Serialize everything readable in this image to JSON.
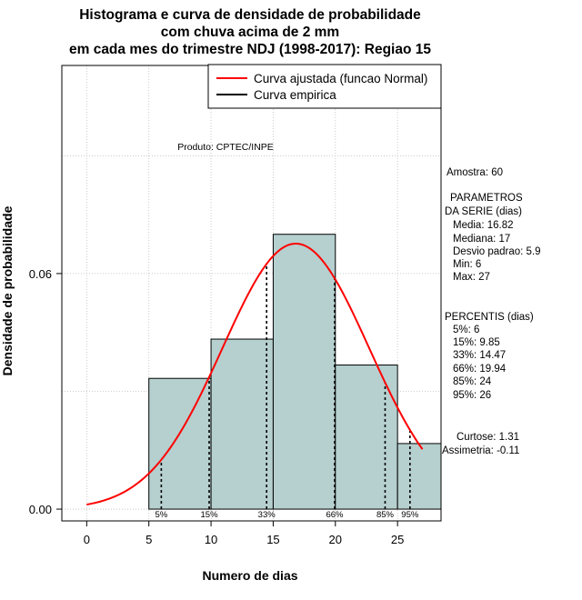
{
  "chart_data": {
    "type": "histogram",
    "title_lines": [
      "Histograma e curva de densidade de probabilidade",
      "com chuva acima de 2 mm",
      "em cada mes do trimestre NDJ (1998-2017): Regiao 15"
    ],
    "xlabel": "Numero de dias",
    "ylabel": "Densidade de probabilidade",
    "xlim": [
      -2,
      28.5
    ],
    "ylim": [
      -0.003,
      0.113
    ],
    "x_ticks": [
      0,
      5,
      10,
      15,
      20,
      25
    ],
    "y_ticks": [
      0.0,
      0.06
    ],
    "y_tick_labels": [
      "0.00",
      "0.06"
    ],
    "grid": true,
    "bins": [
      {
        "start": 5,
        "end": 10,
        "density": 0.0333
      },
      {
        "start": 10,
        "end": 15,
        "density": 0.0433
      },
      {
        "start": 15,
        "end": 20,
        "density": 0.07
      },
      {
        "start": 20,
        "end": 25,
        "density": 0.0367
      },
      {
        "start": 25,
        "end": 30,
        "density": 0.0167
      }
    ],
    "normal_fit": {
      "mean": 16.82,
      "sd": 5.9,
      "x_range": [
        0,
        27
      ]
    },
    "percentiles": [
      {
        "label": "5%",
        "value": 6
      },
      {
        "label": "15%",
        "value": 9.85
      },
      {
        "label": "33%",
        "value": 14.47
      },
      {
        "label": "66%",
        "value": 19.94
      },
      {
        "label": "85%",
        "value": 24
      },
      {
        "label": "95%",
        "value": 26
      }
    ],
    "legend": {
      "position": "top-right",
      "entries": [
        {
          "label": "Curva ajustada (funcao Normal)",
          "color": "#ff0000"
        },
        {
          "label": "Curva empirica",
          "color": "#000000"
        }
      ]
    },
    "colors": {
      "bar_fill": "#b6cfcf",
      "fit_curve": "#ff0000",
      "grid": "#bebebe"
    }
  },
  "credit": "Produto: CPTEC/INPE",
  "stats": {
    "sample": "Amostra: 60",
    "params_title_1": "PARAMETROS",
    "params_title_2": "DA SERIE (dias)",
    "params": [
      "Media: 16.82",
      "Mediana: 17",
      "Desvio padrao: 5.9",
      "Min: 6",
      "Max: 27"
    ],
    "percentis_title": "PERCENTIS (dias)",
    "percentis": [
      "5%: 6",
      "15%: 9.85",
      "33%: 14.47",
      "66%: 19.94",
      "85%: 24",
      "95%: 26"
    ],
    "curtose": "Curtose: 1.31",
    "assimetria": "Assimetria: -0.11"
  }
}
